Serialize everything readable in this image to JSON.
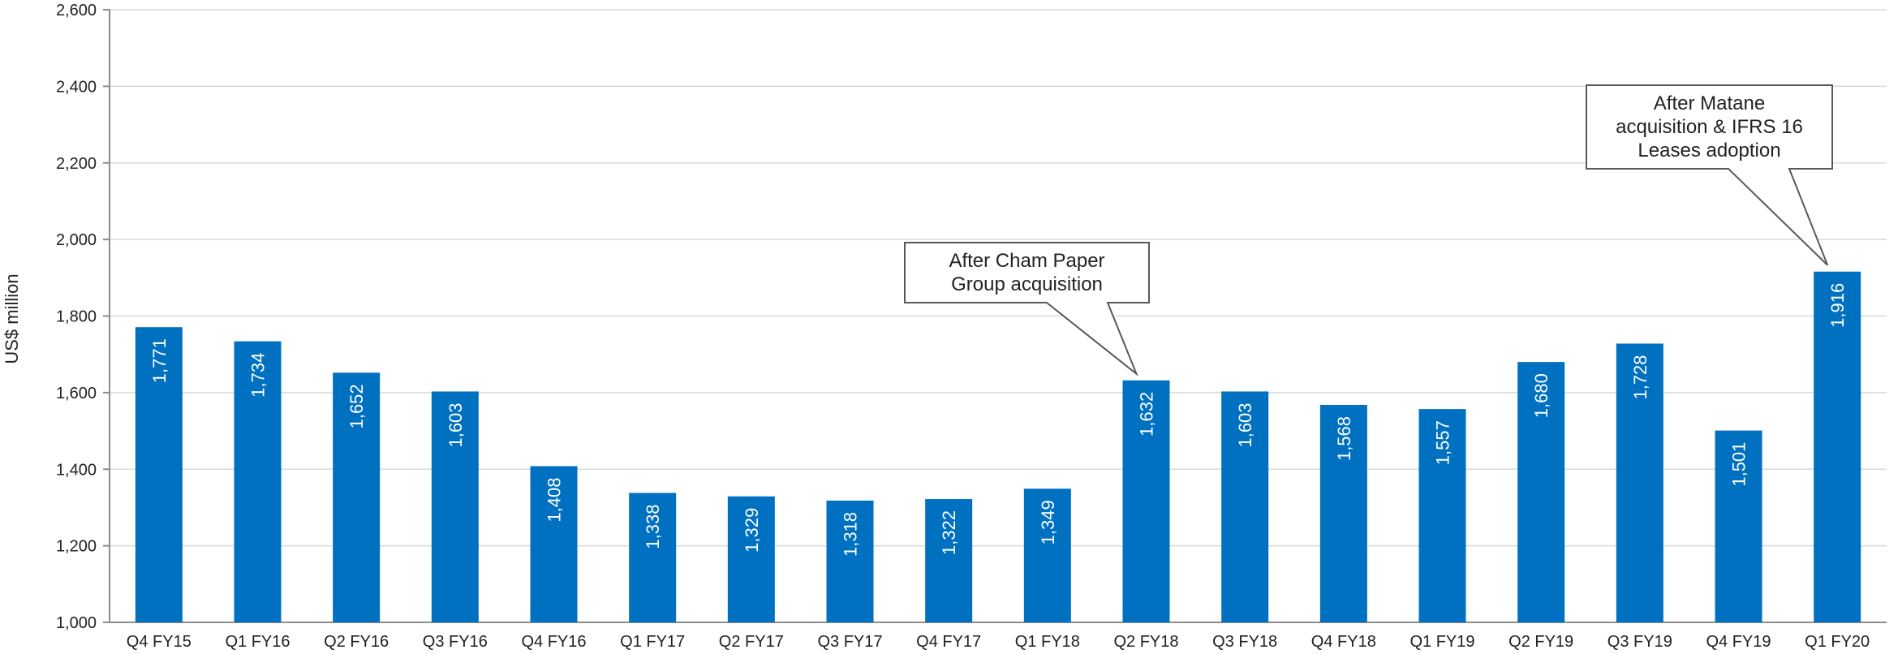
{
  "chart_data": {
    "type": "bar",
    "ylabel": "US$ million",
    "ylim": [
      1000,
      2600
    ],
    "yticks": [
      1000,
      1200,
      1400,
      1600,
      1800,
      2000,
      2200,
      2400,
      2600
    ],
    "ytick_labels": [
      "1,000",
      "1,200",
      "1,400",
      "1,600",
      "1,800",
      "2,000",
      "2,200",
      "2,400",
      "2,600"
    ],
    "grid": true,
    "bar_color": "#0070C0",
    "categories": [
      "Q4 FY15",
      "Q1 FY16",
      "Q2 FY16",
      "Q3 FY16",
      "Q4 FY16",
      "Q1 FY17",
      "Q2 FY17",
      "Q3 FY17",
      "Q4 FY17",
      "Q1 FY18",
      "Q2 FY18",
      "Q3 FY18",
      "Q4 FY18",
      "Q1 FY19",
      "Q2 FY19",
      "Q3 FY19",
      "Q4 FY19",
      "Q1 FY20"
    ],
    "values": [
      1771,
      1734,
      1652,
      1603,
      1408,
      1338,
      1329,
      1318,
      1322,
      1349,
      1632,
      1603,
      1568,
      1557,
      1680,
      1728,
      1501,
      1916
    ],
    "value_labels": [
      "1,771",
      "1,734",
      "1,652",
      "1,603",
      "1,408",
      "1,338",
      "1,329",
      "1,318",
      "1,322",
      "1,349",
      "1,632",
      "1,603",
      "1,568",
      "1,557",
      "1,680",
      "1,728",
      "1,501",
      "1,916"
    ],
    "annotations": [
      {
        "category": "Q2 FY18",
        "lines": [
          "After Cham Paper",
          "Group acquisition"
        ]
      },
      {
        "category": "Q1 FY20",
        "lines": [
          "After Matane",
          "acquisition & IFRS 16",
          "Leases adoption"
        ]
      }
    ]
  }
}
